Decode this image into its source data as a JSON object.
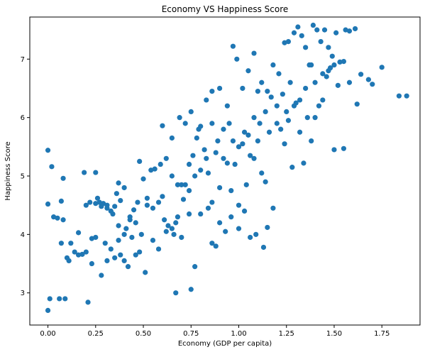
{
  "chart_data": {
    "type": "scatter",
    "title": "Economy VS Happiness Score",
    "xlabel": "Economy (GDP per capita)",
    "ylabel": "Happiness Score",
    "xlim": [
      -0.095,
      1.95
    ],
    "ylim": [
      2.45,
      7.72
    ],
    "xticks": [
      0.0,
      0.25,
      0.5,
      0.75,
      1.0,
      1.25,
      1.5,
      1.75
    ],
    "xtick_labels": [
      "0.00",
      "0.25",
      "0.50",
      "0.75",
      "1.00",
      "1.25",
      "1.50",
      "1.75"
    ],
    "yticks": [
      3,
      4,
      5,
      6,
      7
    ],
    "ytick_labels": [
      "3",
      "4",
      "5",
      "6",
      "7"
    ],
    "grid": false,
    "marker_color": "#1f77b4",
    "series": [
      {
        "points": [
          [
            0.0,
            2.7
          ],
          [
            0.01,
            2.9
          ],
          [
            0.06,
            2.9
          ],
          [
            0.09,
            2.9
          ],
          [
            0.21,
            2.84
          ],
          [
            0.67,
            3.0
          ],
          [
            0.75,
            3.06
          ],
          [
            0.0,
            5.44
          ],
          [
            0.02,
            5.16
          ],
          [
            0.08,
            4.96
          ],
          [
            0.19,
            5.06
          ],
          [
            0.25,
            5.06
          ],
          [
            0.0,
            4.52
          ],
          [
            0.03,
            4.3
          ],
          [
            0.05,
            4.28
          ],
          [
            0.07,
            4.57
          ],
          [
            0.08,
            4.25
          ],
          [
            0.1,
            3.6
          ],
          [
            0.07,
            3.85
          ],
          [
            0.11,
            3.55
          ],
          [
            0.14,
            3.7
          ],
          [
            0.16,
            4.03
          ],
          [
            0.18,
            3.66
          ],
          [
            0.2,
            4.5
          ],
          [
            0.22,
            4.55
          ],
          [
            0.23,
            3.93
          ],
          [
            0.26,
            4.62
          ],
          [
            0.27,
            4.55
          ],
          [
            0.29,
            4.53
          ],
          [
            0.31,
            4.5
          ],
          [
            0.33,
            4.4
          ],
          [
            0.35,
            4.48
          ],
          [
            0.36,
            4.7
          ],
          [
            0.37,
            4.88
          ],
          [
            0.38,
            4.58
          ],
          [
            0.4,
            4.8
          ],
          [
            0.41,
            4.1
          ],
          [
            0.43,
            4.3
          ],
          [
            0.45,
            4.42
          ],
          [
            0.47,
            4.55
          ],
          [
            0.48,
            5.25
          ],
          [
            0.5,
            4.95
          ],
          [
            0.52,
            4.62
          ],
          [
            0.54,
            5.1
          ],
          [
            0.56,
            5.12
          ],
          [
            0.59,
            5.2
          ],
          [
            0.6,
            4.65
          ],
          [
            0.62,
            5.3
          ],
          [
            0.65,
            5.0
          ],
          [
            0.67,
            4.2
          ],
          [
            0.68,
            4.85
          ],
          [
            0.7,
            4.85
          ],
          [
            0.72,
            4.85
          ],
          [
            0.74,
            5.2
          ],
          [
            0.76,
            5.35
          ],
          [
            0.78,
            5.65
          ],
          [
            0.8,
            5.85
          ],
          [
            0.82,
            5.45
          ],
          [
            0.84,
            5.05
          ],
          [
            0.86,
            4.55
          ],
          [
            0.88,
            5.4
          ],
          [
            0.9,
            4.8
          ],
          [
            0.92,
            5.3
          ],
          [
            0.94,
            5.22
          ],
          [
            0.96,
            4.75
          ],
          [
            0.98,
            5.2
          ],
          [
            1.0,
            4.5
          ],
          [
            1.02,
            5.55
          ],
          [
            1.04,
            4.85
          ],
          [
            1.06,
            5.35
          ],
          [
            1.08,
            5.3
          ],
          [
            1.1,
            5.6
          ],
          [
            1.12,
            5.05
          ],
          [
            1.14,
            4.9
          ],
          [
            1.16,
            5.75
          ],
          [
            1.18,
            4.45
          ],
          [
            1.2,
            5.9
          ],
          [
            1.22,
            5.8
          ],
          [
            1.24,
            5.55
          ],
          [
            1.26,
            5.95
          ],
          [
            1.28,
            5.15
          ],
          [
            1.3,
            6.25
          ],
          [
            1.32,
            5.75
          ],
          [
            1.34,
            5.22
          ],
          [
            1.36,
            6.0
          ],
          [
            1.38,
            5.6
          ],
          [
            1.4,
            6.0
          ],
          [
            1.42,
            6.2
          ],
          [
            1.44,
            6.3
          ],
          [
            1.46,
            6.7
          ],
          [
            1.48,
            6.85
          ],
          [
            1.5,
            5.45
          ],
          [
            1.52,
            6.55
          ],
          [
            1.55,
            5.47
          ],
          [
            1.58,
            6.6
          ],
          [
            1.62,
            6.23
          ],
          [
            1.64,
            6.74
          ],
          [
            1.68,
            6.65
          ],
          [
            1.7,
            6.57
          ],
          [
            1.75,
            6.86
          ],
          [
            1.84,
            6.37
          ],
          [
            1.88,
            6.37
          ],
          [
            0.12,
            3.85
          ],
          [
            0.16,
            3.65
          ],
          [
            0.2,
            3.7
          ],
          [
            0.23,
            3.5
          ],
          [
            0.25,
            3.95
          ],
          [
            0.28,
            3.3
          ],
          [
            0.3,
            3.85
          ],
          [
            0.31,
            3.55
          ],
          [
            0.33,
            3.75
          ],
          [
            0.35,
            3.6
          ],
          [
            0.37,
            3.9
          ],
          [
            0.38,
            3.65
          ],
          [
            0.4,
            3.55
          ],
          [
            0.42,
            3.45
          ],
          [
            0.44,
            3.95
          ],
          [
            0.46,
            3.65
          ],
          [
            0.48,
            3.7
          ],
          [
            0.51,
            3.35
          ],
          [
            0.55,
            3.9
          ],
          [
            0.58,
            3.75
          ],
          [
            0.61,
            4.25
          ],
          [
            0.63,
            4.15
          ],
          [
            0.66,
            4.0
          ],
          [
            0.7,
            3.95
          ],
          [
            0.74,
            4.35
          ],
          [
            0.77,
            3.45
          ],
          [
            0.8,
            4.35
          ],
          [
            0.84,
            4.45
          ],
          [
            0.86,
            3.85
          ],
          [
            0.88,
            3.8
          ],
          [
            0.9,
            4.2
          ],
          [
            0.93,
            4.05
          ],
          [
            0.96,
            4.3
          ],
          [
            1.0,
            4.1
          ],
          [
            1.03,
            4.4
          ],
          [
            1.06,
            3.95
          ],
          [
            1.09,
            4.0
          ],
          [
            1.13,
            3.78
          ],
          [
            1.15,
            4.12
          ],
          [
            0.6,
            5.86
          ],
          [
            0.65,
            5.65
          ],
          [
            0.69,
            6.0
          ],
          [
            0.72,
            5.9
          ],
          [
            0.75,
            6.1
          ],
          [
            0.79,
            5.8
          ],
          [
            0.83,
            6.3
          ],
          [
            0.86,
            6.45
          ],
          [
            0.9,
            6.5
          ],
          [
            0.94,
            6.2
          ],
          [
            0.97,
            7.22
          ],
          [
            0.99,
            7.0
          ],
          [
            1.02,
            6.5
          ],
          [
            1.05,
            6.8
          ],
          [
            1.08,
            7.1
          ],
          [
            1.1,
            6.45
          ],
          [
            1.12,
            6.6
          ],
          [
            1.15,
            6.45
          ],
          [
            1.18,
            6.9
          ],
          [
            1.21,
            6.75
          ],
          [
            1.24,
            7.28
          ],
          [
            1.26,
            7.3
          ],
          [
            1.29,
            7.45
          ],
          [
            1.31,
            7.55
          ],
          [
            1.33,
            7.4
          ],
          [
            1.35,
            7.2
          ],
          [
            1.37,
            6.9
          ],
          [
            1.39,
            7.58
          ],
          [
            1.41,
            7.5
          ],
          [
            1.43,
            7.3
          ],
          [
            1.45,
            7.5
          ],
          [
            1.47,
            7.2
          ],
          [
            1.49,
            7.05
          ],
          [
            1.51,
            7.45
          ],
          [
            1.53,
            6.95
          ],
          [
            1.56,
            7.5
          ],
          [
            1.58,
            7.48
          ],
          [
            1.61,
            7.52
          ],
          [
            1.55,
            6.96
          ],
          [
            1.5,
            6.9
          ],
          [
            1.47,
            6.8
          ],
          [
            1.44,
            6.75
          ],
          [
            1.4,
            6.6
          ],
          [
            1.38,
            6.9
          ],
          [
            1.35,
            6.5
          ],
          [
            1.32,
            6.3
          ],
          [
            1.29,
            6.2
          ],
          [
            1.27,
            6.6
          ],
          [
            1.25,
            6.1
          ],
          [
            1.23,
            6.4
          ],
          [
            1.2,
            6.2
          ],
          [
            1.17,
            6.35
          ],
          [
            1.14,
            6.1
          ],
          [
            1.11,
            5.9
          ],
          [
            1.08,
            6.0
          ],
          [
            1.05,
            5.7
          ],
          [
            1.03,
            5.75
          ],
          [
            1.0,
            5.5
          ],
          [
            0.97,
            5.6
          ],
          [
            0.95,
            5.9
          ],
          [
            0.92,
            5.8
          ],
          [
            0.89,
            5.6
          ],
          [
            0.86,
            5.9
          ],
          [
            0.83,
            5.3
          ],
          [
            0.8,
            5.1
          ],
          [
            0.77,
            5.0
          ],
          [
            0.74,
            4.75
          ],
          [
            0.71,
            4.6
          ],
          [
            0.68,
            4.3
          ],
          [
            0.65,
            4.1
          ],
          [
            0.62,
            4.05
          ],
          [
            0.58,
            4.55
          ],
          [
            0.55,
            4.45
          ],
          [
            0.52,
            4.5
          ],
          [
            0.49,
            4.0
          ],
          [
            0.46,
            4.2
          ],
          [
            0.43,
            4.25
          ],
          [
            0.4,
            4.0
          ],
          [
            0.37,
            4.15
          ],
          [
            0.34,
            4.35
          ],
          [
            0.31,
            4.45
          ],
          [
            0.28,
            4.48
          ],
          [
            0.25,
            4.53
          ]
        ]
      }
    ]
  }
}
